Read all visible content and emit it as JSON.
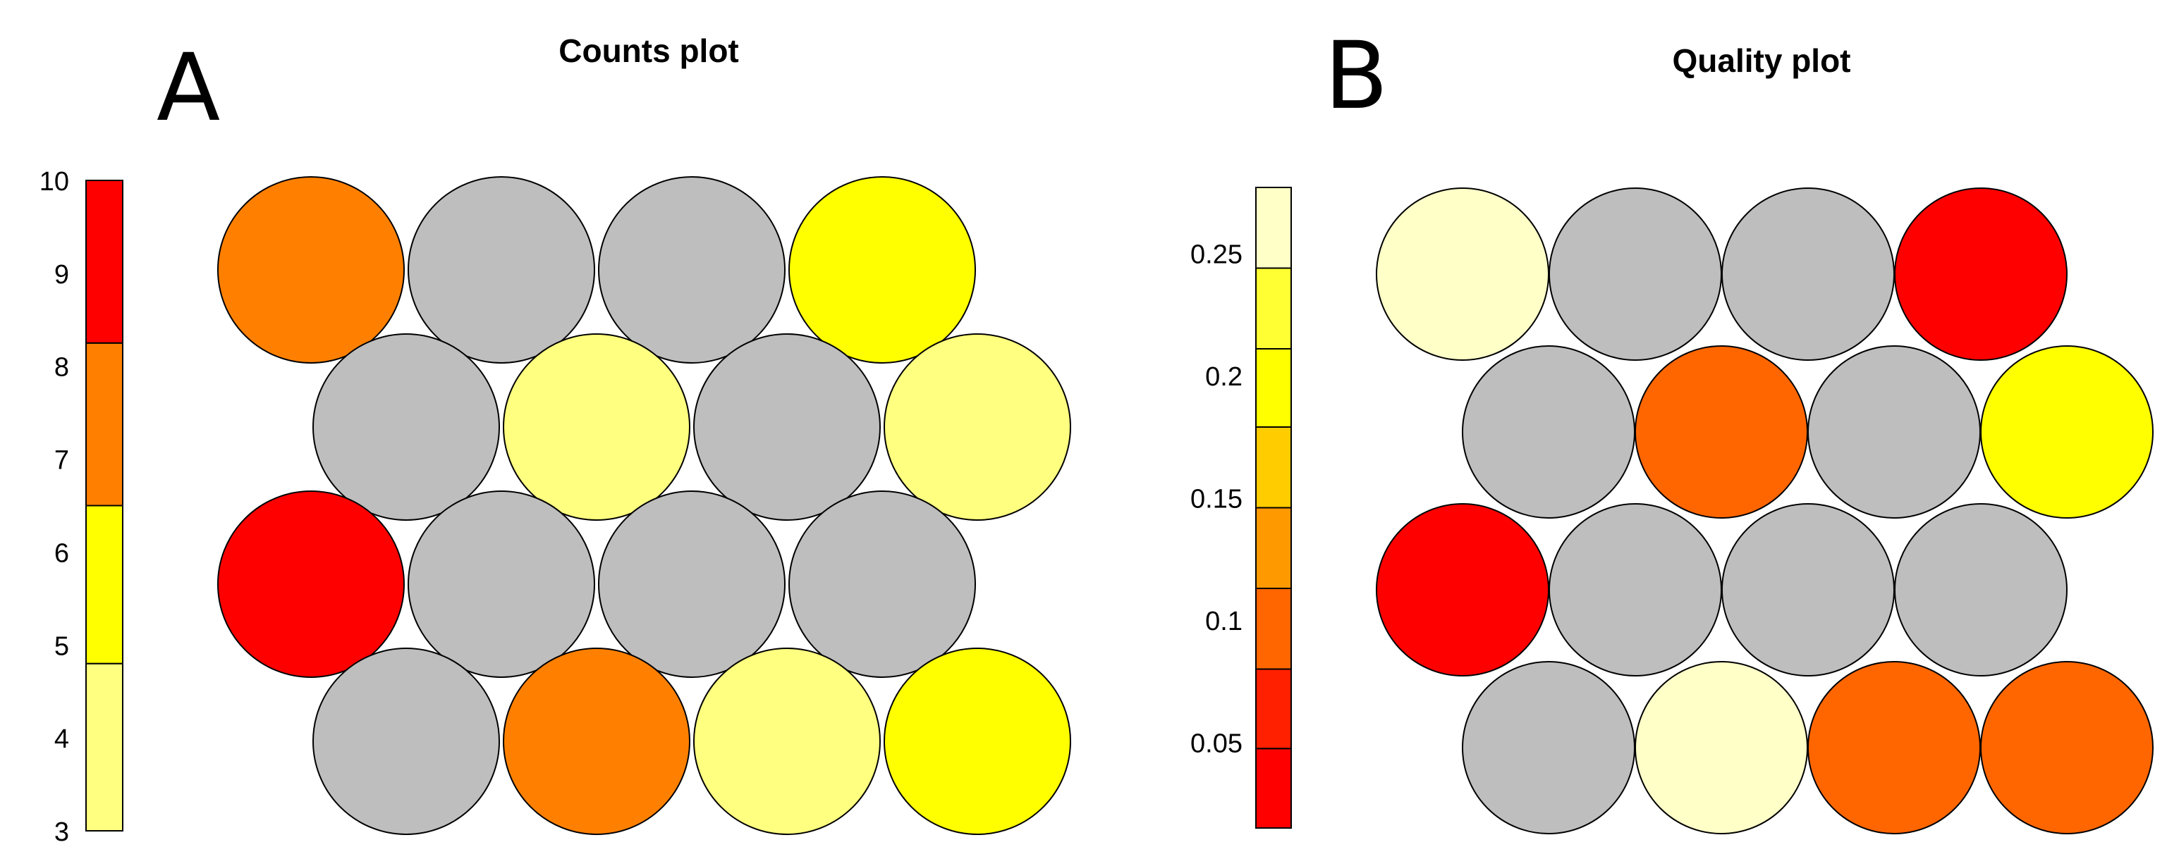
{
  "panels": [
    {
      "letter": "A",
      "title": "Counts plot"
    },
    {
      "letter": "B",
      "title": "Quality plot"
    }
  ],
  "chart_data": [
    {
      "type": "heatmap",
      "title": "Counts plot",
      "layout": "hexagonal grid 4x4",
      "colorbar": {
        "ticks": [
          "3",
          "4",
          "5",
          "6",
          "7",
          "8",
          "9",
          "10"
        ],
        "range": [
          3,
          10
        ],
        "bins": [
          {
            "from": 3,
            "to": 4.8,
            "color": "#ffff80"
          },
          {
            "from": 4.8,
            "to": 6.5,
            "color": "#ffff00"
          },
          {
            "from": 6.5,
            "to": 8.25,
            "color": "#ff8000"
          },
          {
            "from": 8.25,
            "to": 10,
            "color": "#ff0000"
          }
        ]
      },
      "cells": [
        [
          "#ff8000",
          "#bebebe",
          "#bebebe",
          "#ffff00"
        ],
        [
          "#bebebe",
          "#ffff80",
          "#bebebe",
          "#ffff80"
        ],
        [
          "#ff0000",
          "#bebebe",
          "#bebebe",
          "#bebebe"
        ],
        [
          "#bebebe",
          "#ff8000",
          "#ffff80",
          "#ffff00"
        ]
      ],
      "empty_color": "#bebebe"
    },
    {
      "type": "heatmap",
      "title": "Quality plot",
      "layout": "hexagonal grid 4x4",
      "colorbar": {
        "ticks": [
          "0.05",
          "0.1",
          "0.15",
          "0.2",
          "0.25"
        ],
        "range": [
          0.015,
          0.277
        ],
        "bins": [
          {
            "from": 0.015,
            "to": 0.0475,
            "color": "#ff0000"
          },
          {
            "from": 0.0475,
            "to": 0.08,
            "color": "#ff2000"
          },
          {
            "from": 0.08,
            "to": 0.113,
            "color": "#ff6600"
          },
          {
            "from": 0.113,
            "to": 0.146,
            "color": "#ff9900"
          },
          {
            "from": 0.146,
            "to": 0.179,
            "color": "#ffcc00"
          },
          {
            "from": 0.179,
            "to": 0.211,
            "color": "#ffff00"
          },
          {
            "from": 0.211,
            "to": 0.244,
            "color": "#ffff33"
          },
          {
            "from": 0.244,
            "to": 0.277,
            "color": "#ffffc8"
          }
        ]
      },
      "cells": [
        [
          "#ffffc8",
          "#bebebe",
          "#bebebe",
          "#ff0000"
        ],
        [
          "#bebebe",
          "#ff6600",
          "#bebebe",
          "#ffff00"
        ],
        [
          "#ff0000",
          "#bebebe",
          "#bebebe",
          "#bebebe"
        ],
        [
          "#bebebe",
          "#ffffc8",
          "#ff6600",
          "#ff6600"
        ]
      ],
      "empty_color": "#bebebe"
    }
  ]
}
